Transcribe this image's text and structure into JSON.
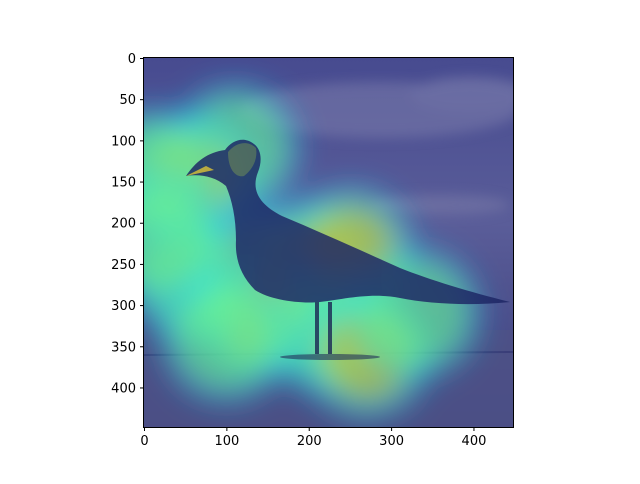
{
  "chart_data": {
    "type": "heatmap",
    "description_free": true,
    "title": "",
    "xlabel": "",
    "ylabel": "",
    "xlim": [
      0,
      448
    ],
    "ylim": [
      448,
      0
    ],
    "xticks": [
      "0",
      "100",
      "200",
      "300",
      "400"
    ],
    "yticks": [
      "0",
      "50",
      "100",
      "150",
      "200",
      "250",
      "300",
      "350",
      "400"
    ],
    "xtick_values": [
      0,
      100,
      200,
      300,
      400
    ],
    "ytick_values": [
      0,
      50,
      100,
      150,
      200,
      250,
      300,
      350,
      400
    ],
    "grid": false,
    "colormap": "jet",
    "colors": {
      "background_low": "#3a3f8c",
      "sky": "#4c4f93",
      "cloud": "#5e6196",
      "sand": "#595c8a",
      "bird_dark": "#1a2a66",
      "accent_hot": "#d42a1a"
    },
    "hotspots": [
      {
        "x": 110,
        "y": 110,
        "level": 0.55
      },
      {
        "x": 55,
        "y": 145,
        "level": 0.75
      },
      {
        "x": 10,
        "y": 140,
        "level": 0.45
      },
      {
        "x": 130,
        "y": 260,
        "level": 0.95
      },
      {
        "x": 200,
        "y": 250,
        "level": 0.9
      },
      {
        "x": 250,
        "y": 235,
        "level": 0.7
      },
      {
        "x": 140,
        "y": 310,
        "level": 0.7
      },
      {
        "x": 60,
        "y": 270,
        "level": 0.55
      },
      {
        "x": 220,
        "y": 330,
        "level": 0.5
      },
      {
        "x": 270,
        "y": 360,
        "level": 0.6
      },
      {
        "x": 330,
        "y": 310,
        "level": 0.4
      },
      {
        "x": 100,
        "y": 340,
        "level": 0.5
      },
      {
        "x": 20,
        "y": 220,
        "level": 0.4
      }
    ]
  }
}
